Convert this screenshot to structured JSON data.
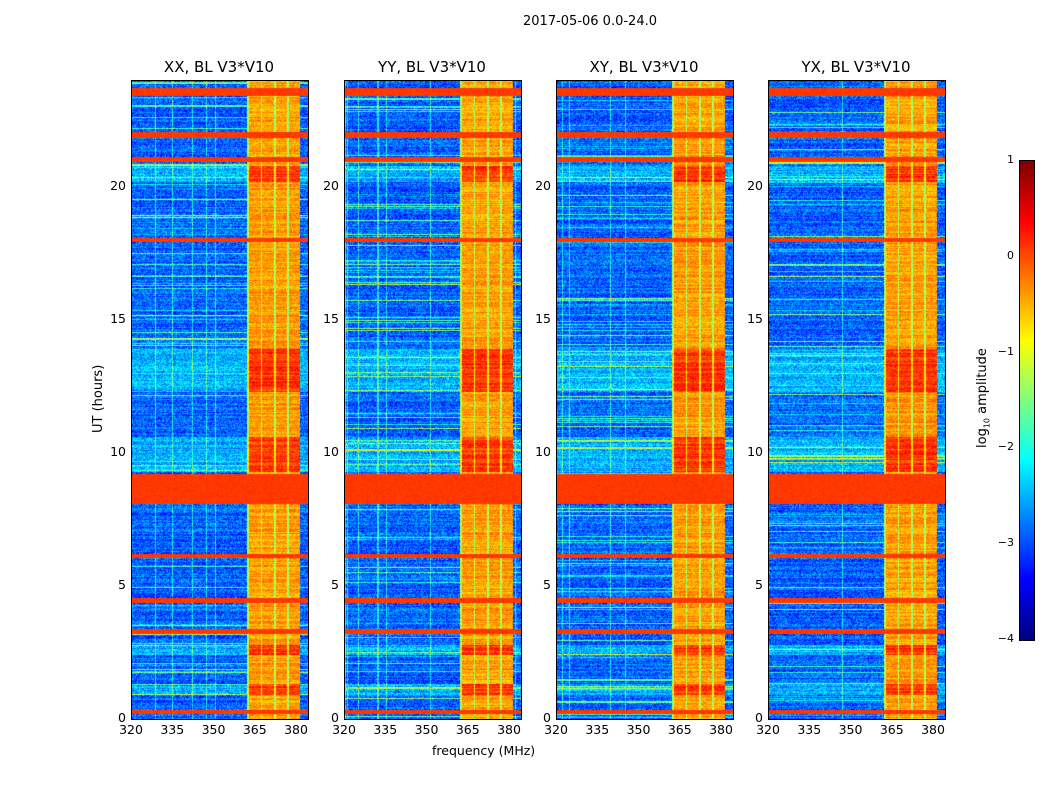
{
  "chart_data": [
    {
      "type": "heatmap",
      "suptitle": "2017-05-06 0.0-24.0",
      "panels": [
        {
          "title": "XX, BL V3*V10",
          "seed": 11
        },
        {
          "title": "YY, BL V3*V10",
          "seed": 23
        },
        {
          "title": "XY, BL V3*V10",
          "seed": 37
        },
        {
          "title": "YX, BL V3*V10",
          "seed": 51
        }
      ],
      "xlabel": "frequency (MHz)",
      "ylabel": "UT (hours)",
      "xlim": [
        320,
        384
      ],
      "ylim": [
        0,
        24
      ],
      "xticks": [
        "320",
        "335",
        "350",
        "365",
        "380"
      ],
      "yticks": [
        "0",
        "5",
        "10",
        "15",
        "20"
      ],
      "colormap": "jet",
      "clim": [
        -4,
        1
      ],
      "colorbar_label_prefix": "log",
      "colorbar_label_sub": "10",
      "colorbar_label_suffix": " amplitude",
      "colorbar_ticks": [
        "1",
        "0",
        "−1",
        "−2",
        "−3",
        "−4"
      ],
      "background_level": -2.9,
      "rfi_channel_block_mhz": [
        362,
        381
      ],
      "rfi_channel_level": -0.4,
      "rfi_time_bands_hours": [
        [
          23.45,
          23.75
        ],
        [
          21.85,
          22.1
        ],
        [
          20.95,
          21.15
        ],
        [
          17.95,
          18.1
        ],
        [
          8.1,
          9.2
        ],
        [
          6.05,
          6.2
        ],
        [
          4.35,
          4.55
        ],
        [
          3.2,
          3.4
        ],
        [
          0.2,
          0.35
        ]
      ],
      "rfi_band_level": 0.1,
      "elevated_time_bands_hours": [
        [
          20.2,
          20.8
        ],
        [
          9.3,
          10.6
        ],
        [
          12.3,
          13.9
        ],
        [
          0.9,
          1.3
        ],
        [
          2.4,
          2.8
        ]
      ]
    }
  ]
}
